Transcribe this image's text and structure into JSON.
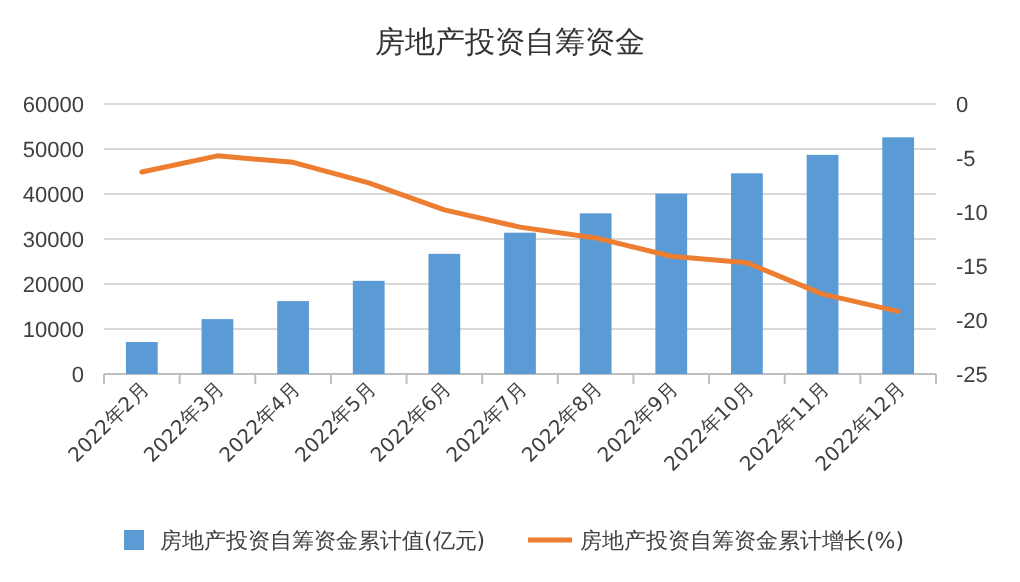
{
  "chart_data": {
    "type": "bar",
    "title": "房地产投资自筹资金",
    "categories": [
      "2022年2月",
      "2022年3月",
      "2022年4月",
      "2022年5月",
      "2022年6月",
      "2022年7月",
      "2022年8月",
      "2022年9月",
      "2022年10月",
      "2022年11月",
      "2022年12月"
    ],
    "series": [
      {
        "name": "房地产投资自筹资金累计值(亿元)",
        "color": "#5b9bd5",
        "values": [
          7100,
          12200,
          16200,
          20700,
          26700,
          31400,
          35700,
          40100,
          44600,
          48700,
          52600
        ]
      },
      {
        "name": "房地产投资自筹资金累计增长(%)",
        "type": "line",
        "axis": "y2",
        "color": "#ed7d31",
        "values": [
          -6.3,
          -4.8,
          -5.4,
          -7.3,
          -9.8,
          -11.4,
          -12.4,
          -14.1,
          -14.7,
          -17.6,
          -19.2
        ]
      }
    ],
    "ylim": [
      0,
      60000
    ],
    "yticks": [
      0,
      10000,
      20000,
      30000,
      40000,
      50000,
      60000
    ],
    "y2lim": [
      -25,
      0
    ],
    "y2ticks": [
      -25,
      -20,
      -15,
      -10,
      -5,
      0
    ],
    "grid": "y",
    "legend": "bottom",
    "marker": "none",
    "line_style": "solid"
  }
}
